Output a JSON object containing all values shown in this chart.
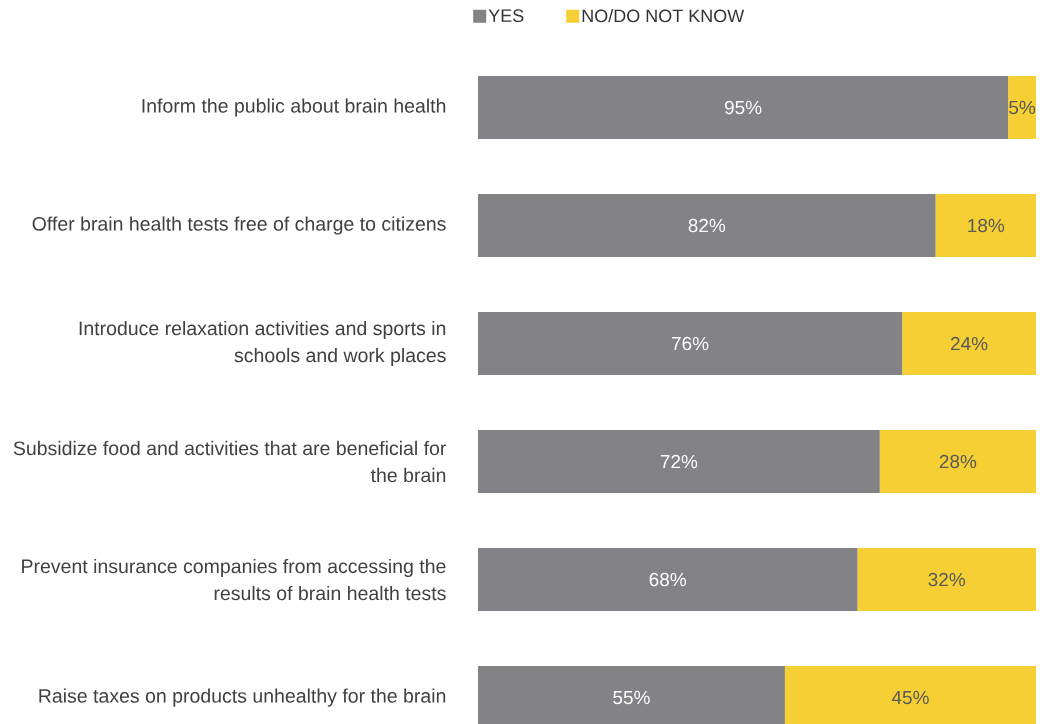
{
  "chart_data": {
    "type": "bar",
    "orientation": "horizontal",
    "stacked": true,
    "categories": [
      "Inform the public about brain health",
      "Offer brain health tests free of charge to citizens",
      "Introduce relaxation activities and sports in schools and work places",
      "Subsidize food and activities that are beneficial for the brain",
      "Prevent insurance companies from accessing the results of brain health tests",
      "Raise taxes on products unhealthy for the brain"
    ],
    "series": [
      {
        "name": "YES",
        "color": "#838387",
        "values": [
          95,
          82,
          76,
          72,
          68,
          55
        ],
        "value_labels": [
          "95%",
          "82%",
          "76%",
          "72%",
          "68%",
          "55%"
        ]
      },
      {
        "name": "NO/DO NOT KNOW",
        "color": "#f5cf33",
        "values": [
          5,
          18,
          24,
          28,
          32,
          45
        ],
        "value_labels": [
          "5%",
          "18%",
          "24%",
          "28%",
          "32%",
          "45%"
        ]
      }
    ],
    "xlim": [
      0,
      100
    ],
    "tick_labels": "y",
    "legend": "top",
    "grid": false
  }
}
